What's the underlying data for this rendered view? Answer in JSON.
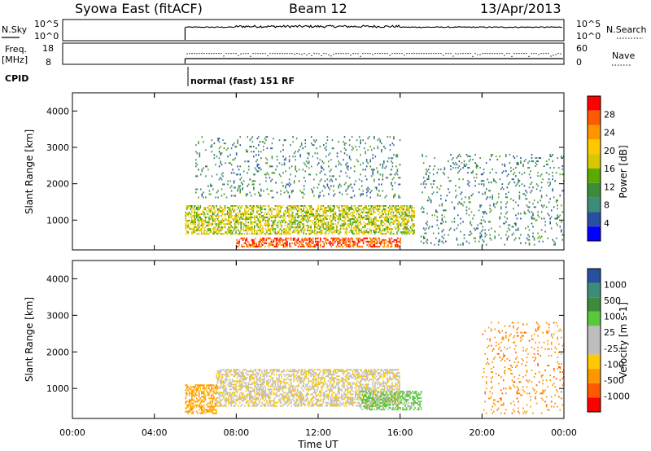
{
  "header": {
    "station": "Syowa East (fitACF)",
    "beam": "Beam 12",
    "date": "13/Apr/2013"
  },
  "panels": {
    "nsky_label": "N.Sky",
    "nsky_ticks": [
      "10^5",
      "10^0"
    ],
    "nsearch_label": "N.Search",
    "nsearch_ticks": [
      "10^5",
      "10^0"
    ],
    "freq_label_1": "Freq.",
    "freq_label_2": "[MHz]",
    "freq_ticks": [
      "18",
      "8"
    ],
    "nave_label": "Nave",
    "nave_ticks": [
      "60",
      "0"
    ],
    "cpid_label": "CPID",
    "cpid_text": "normal (fast) 151 RF"
  },
  "colorbars": {
    "power": {
      "title": "Power [dB]",
      "labels": [
        "28",
        "24",
        "20",
        "16",
        "12",
        "8",
        "4"
      ],
      "colors": [
        "#ff0000",
        "#ff5a00",
        "#ff9600",
        "#ffc800",
        "#d7c800",
        "#5aaa00",
        "#3c8c3c",
        "#3c8c78",
        "#2850a0",
        "#0000ff"
      ]
    },
    "velocity": {
      "title": "Velocity [m s-1]",
      "labels": [
        "1000",
        "500",
        "100",
        "25",
        "-25",
        "-100",
        "-500",
        "-1000"
      ],
      "colors": [
        "#2850a0",
        "#3c8c78",
        "#3c8c3c",
        "#5ac83c",
        "#bebebe",
        "#bebebe",
        "#ffc800",
        "#ff9600",
        "#ff5a00",
        "#ff0000"
      ]
    }
  },
  "chart_data": [
    {
      "type": "heatmap",
      "title": "Power [dB]",
      "xlabel": "",
      "ylabel": "Slant Range [km]",
      "xlim": [
        "00:00",
        "24:00"
      ],
      "ylim": [
        180,
        4500
      ],
      "x_ticks": [
        "00:00",
        "04:00",
        "08:00",
        "12:00",
        "16:00",
        "20:00",
        "00:00"
      ],
      "y_ticks": [
        1000,
        2000,
        3000,
        4000
      ],
      "data_start_time": "05:30",
      "color_scale": [
        0,
        30
      ],
      "regions": [
        {
          "name": "main echo band",
          "time": [
            "05:30",
            "16:40"
          ],
          "range_km": [
            600,
            1400
          ],
          "value": 16
        },
        {
          "name": "low range strong echo",
          "time": [
            "08:00",
            "16:00"
          ],
          "range_km": [
            250,
            500
          ],
          "value": 26
        },
        {
          "name": "upper scatter",
          "time": [
            "06:00",
            "16:00"
          ],
          "range_km": [
            1600,
            3300
          ],
          "value": 8
        },
        {
          "name": "late scatter",
          "time": [
            "17:00",
            "24:00"
          ],
          "range_km": [
            300,
            2800
          ],
          "value": 8
        }
      ]
    },
    {
      "type": "heatmap",
      "title": "Velocity [m s-1]",
      "xlabel": "Time UT",
      "ylabel": "Slant Range [km]",
      "xlim": [
        "00:00",
        "24:00"
      ],
      "ylim": [
        180,
        4500
      ],
      "x_ticks": [
        "00:00",
        "04:00",
        "08:00",
        "12:00",
        "16:00",
        "20:00",
        "00:00"
      ],
      "y_ticks": [
        1000,
        2000,
        3000,
        4000
      ],
      "data_start_time": "05:30",
      "color_scale": [
        -1000,
        1000
      ],
      "regions": [
        {
          "name": "main echo band",
          "time": [
            "07:00",
            "16:00"
          ],
          "range_km": [
            500,
            1500
          ],
          "value": 0
        },
        {
          "name": "early negative",
          "time": [
            "05:30",
            "07:00"
          ],
          "range_km": [
            300,
            1100
          ],
          "value": -150
        },
        {
          "name": "afternoon positive",
          "time": [
            "14:00",
            "17:00"
          ],
          "range_km": [
            400,
            900
          ],
          "value": 150
        },
        {
          "name": "late scatter",
          "time": [
            "20:00",
            "24:00"
          ],
          "range_km": [
            300,
            2800
          ],
          "value": -200
        }
      ]
    }
  ]
}
